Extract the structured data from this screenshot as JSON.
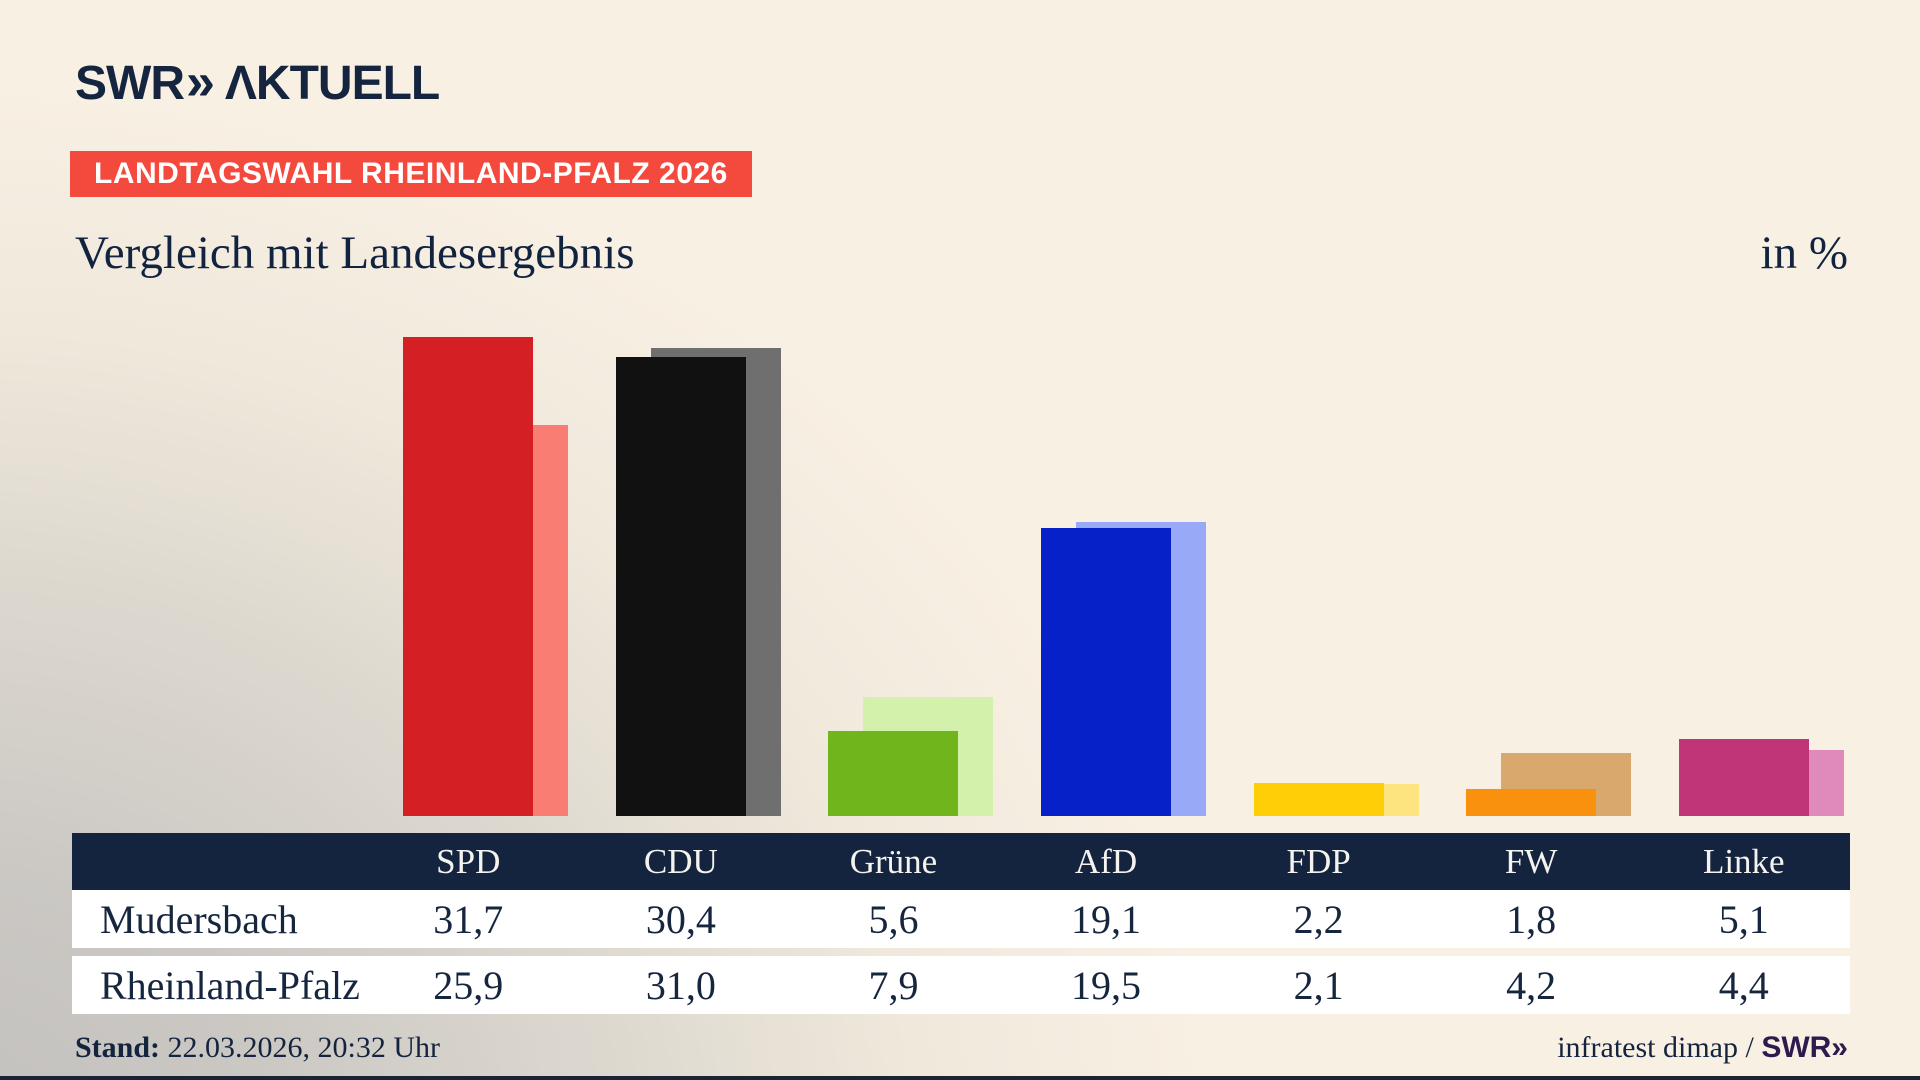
{
  "brand": {
    "logo_swr": "SWR",
    "logo_chevrons": "»",
    "logo_aktuell": "ΛKTUELL"
  },
  "header": {
    "badge": "LANDTAGSWAHL RHEINLAND-PFALZ 2026",
    "title": "Vergleich mit Landesergebnis",
    "unit_label": "in %"
  },
  "table": {
    "columns": [
      "SPD",
      "CDU",
      "Grüne",
      "AfD",
      "FDP",
      "FW",
      "Linke"
    ],
    "rows": [
      {
        "label": "Mudersbach",
        "values": [
          "31,7",
          "30,4",
          "5,6",
          "19,1",
          "2,2",
          "1,8",
          "5,1"
        ]
      },
      {
        "label": "Rheinland-Pfalz",
        "values": [
          "25,9",
          "31,0",
          "7,9",
          "19,5",
          "2,1",
          "4,2",
          "4,4"
        ]
      }
    ]
  },
  "footer": {
    "stand_label": "Stand:",
    "stand_value": "22.03.2026, 20:32 Uhr",
    "source_prefix": "infratest dimap / ",
    "source_brand": "SWR»"
  },
  "chart_data": {
    "type": "bar",
    "title": "Vergleich mit Landesergebnis",
    "unit": "in %",
    "categories": [
      "SPD",
      "CDU",
      "Grüne",
      "AfD",
      "FDP",
      "FW",
      "Linke"
    ],
    "series": [
      {
        "name": "Mudersbach",
        "role": "front bar",
        "values": [
          31.7,
          30.4,
          5.6,
          19.1,
          2.2,
          1.8,
          5.1
        ]
      },
      {
        "name": "Rheinland-Pfalz",
        "role": "back bar, offset right",
        "values": [
          25.9,
          31.0,
          7.9,
          19.5,
          2.1,
          4.2,
          4.4
        ]
      }
    ],
    "ylim": [
      0,
      35
    ],
    "grid": false,
    "legend": "none (series identified by table rows below)",
    "party_colors": [
      {
        "party": "SPD",
        "main": "#d42025",
        "light": "#fa7d74"
      },
      {
        "party": "CDU",
        "main": "#111111",
        "light": "#6f6f6f"
      },
      {
        "party": "Grüne",
        "main": "#70b51c",
        "light": "#d3f1ab"
      },
      {
        "party": "AfD",
        "main": "#0721c9",
        "light": "#97a9f7"
      },
      {
        "party": "FDP",
        "main": "#fecf06",
        "light": "#fee47f"
      },
      {
        "party": "FW",
        "main": "#f9910e",
        "light": "#d8a86d"
      },
      {
        "party": "Linke",
        "main": "#c03478",
        "light": "#df8aba"
      }
    ]
  },
  "colors": {
    "background_beige": "#f9f0e4",
    "background_gray": "#c2c0bd",
    "navy": "#14243e",
    "badge_red": "#f4493d",
    "row_white": "#ffffff",
    "swr_purple": "#2d1b4e"
  }
}
